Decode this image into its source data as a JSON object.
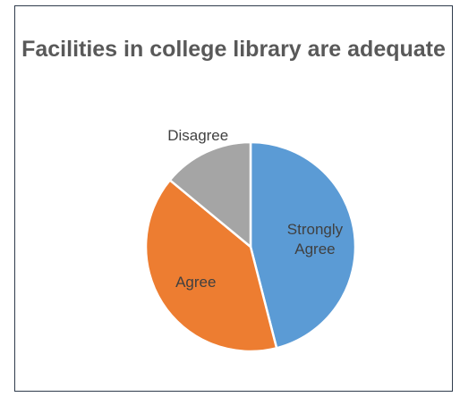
{
  "chart_data": {
    "type": "pie",
    "title": "Facilities in college library are adequate",
    "slices": [
      {
        "label": "Strongly Agree",
        "value": 46,
        "color": "#5b9bd5",
        "label_color": "#404040"
      },
      {
        "label": "Agree",
        "value": 40,
        "color": "#ed7d31",
        "label_color": "#404040"
      },
      {
        "label": "Disagree",
        "value": 14,
        "color": "#a5a5a5",
        "label_color": "#404040"
      }
    ],
    "legend": "none"
  }
}
